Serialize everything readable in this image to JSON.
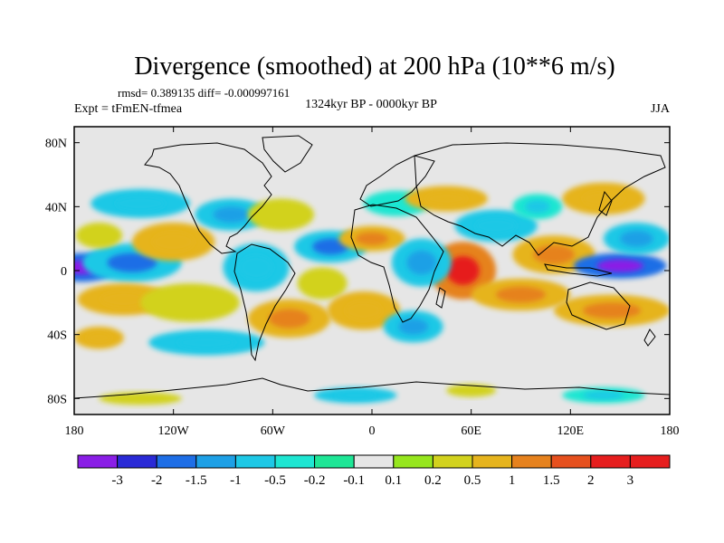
{
  "chart_data": {
    "type": "heatmap",
    "title": "Divergence (smoothed) at 200 hPa (10**6 m/s)",
    "stats_line": "rmsd= 0.389135 diff= -0.000997161",
    "subtitle_center": "1324kyr BP - 0000kyr BP",
    "subtitle_left": "Expt = tFmEN-tfmea",
    "subtitle_right": "JJA",
    "x_ticks": [
      "180",
      "120W",
      "60W",
      "0",
      "60E",
      "120E",
      "180"
    ],
    "x_tick_lons": [
      -180,
      -120,
      -60,
      0,
      60,
      120,
      180
    ],
    "y_ticks": [
      "80N",
      "40N",
      "0",
      "40S",
      "80S"
    ],
    "y_tick_lats": [
      80,
      40,
      0,
      -40,
      -80
    ],
    "xlim": [
      -180,
      180
    ],
    "ylim": [
      -90,
      90
    ],
    "colorbar": {
      "labels": [
        "-3",
        "-2",
        "-1.5",
        "-1",
        "-0.5",
        "-0.2",
        "-0.1",
        "0.1",
        "0.2",
        "0.5",
        "1",
        "1.5",
        "2",
        "3"
      ],
      "colors": [
        "#8a1ee6",
        "#2a2ad6",
        "#1e6ee6",
        "#1ea0e6",
        "#1ec8e6",
        "#1ee6d2",
        "#1ee696",
        "#e6e6e6",
        "#96e61e",
        "#d2d21e",
        "#e6b41e",
        "#e6821e",
        "#e6501e",
        "#e61e1e",
        "#e61e1e"
      ]
    },
    "anomalies": [
      {
        "lon": -175,
        "lat": 2,
        "value": -2.0,
        "rx": 20,
        "ry": 9
      },
      {
        "lon": -145,
        "lat": 5,
        "value": -1.0,
        "rx": 30,
        "ry": 12
      },
      {
        "lon": -120,
        "lat": 18,
        "value": 0.6,
        "rx": 25,
        "ry": 12
      },
      {
        "lon": -165,
        "lat": 22,
        "value": 0.4,
        "rx": 14,
        "ry": 8
      },
      {
        "lon": -150,
        "lat": -18,
        "value": 0.5,
        "rx": 28,
        "ry": 10
      },
      {
        "lon": -110,
        "lat": -20,
        "value": 0.4,
        "rx": 30,
        "ry": 12
      },
      {
        "lon": -140,
        "lat": 42,
        "value": -0.6,
        "rx": 30,
        "ry": 9
      },
      {
        "lon": -165,
        "lat": -42,
        "value": 0.5,
        "rx": 15,
        "ry": 7
      },
      {
        "lon": -100,
        "lat": -45,
        "value": -0.6,
        "rx": 35,
        "ry": 8
      },
      {
        "lon": -85,
        "lat": 35,
        "value": -0.7,
        "rx": 22,
        "ry": 10
      },
      {
        "lon": -55,
        "lat": 35,
        "value": 0.4,
        "rx": 20,
        "ry": 10
      },
      {
        "lon": -70,
        "lat": 2,
        "value": -0.6,
        "rx": 20,
        "ry": 15
      },
      {
        "lon": -25,
        "lat": 15,
        "value": -1.0,
        "rx": 22,
        "ry": 10
      },
      {
        "lon": -30,
        "lat": -8,
        "value": 0.4,
        "rx": 15,
        "ry": 10
      },
      {
        "lon": -50,
        "lat": -30,
        "value": 0.7,
        "rx": 25,
        "ry": 12
      },
      {
        "lon": -5,
        "lat": -25,
        "value": 0.6,
        "rx": 22,
        "ry": 12
      },
      {
        "lon": 0,
        "lat": 20,
        "value": 0.8,
        "rx": 20,
        "ry": 8
      },
      {
        "lon": 15,
        "lat": 42,
        "value": -0.4,
        "rx": 20,
        "ry": 8
      },
      {
        "lon": 25,
        "lat": -35,
        "value": -0.7,
        "rx": 18,
        "ry": 10
      },
      {
        "lon": 45,
        "lat": 45,
        "value": 0.5,
        "rx": 25,
        "ry": 8
      },
      {
        "lon": 55,
        "lat": 0,
        "value": 1.3,
        "rx": 20,
        "ry": 18
      },
      {
        "lon": 30,
        "lat": 5,
        "value": -0.8,
        "rx": 18,
        "ry": 15
      },
      {
        "lon": 75,
        "lat": 28,
        "value": -0.6,
        "rx": 25,
        "ry": 10
      },
      {
        "lon": 90,
        "lat": -15,
        "value": 0.8,
        "rx": 30,
        "ry": 10
      },
      {
        "lon": 110,
        "lat": 10,
        "value": 0.9,
        "rx": 25,
        "ry": 12
      },
      {
        "lon": 150,
        "lat": 3,
        "value": -2.0,
        "rx": 28,
        "ry": 8
      },
      {
        "lon": 140,
        "lat": 45,
        "value": 0.6,
        "rx": 25,
        "ry": 10
      },
      {
        "lon": 160,
        "lat": 20,
        "value": -0.8,
        "rx": 20,
        "ry": 10
      },
      {
        "lon": 145,
        "lat": -25,
        "value": 0.7,
        "rx": 35,
        "ry": 10
      },
      {
        "lon": 100,
        "lat": 40,
        "value": -0.5,
        "rx": 15,
        "ry": 8
      },
      {
        "lon": -140,
        "lat": -80,
        "value": 0.4,
        "rx": 25,
        "ry": 4
      },
      {
        "lon": -10,
        "lat": -78,
        "value": -0.6,
        "rx": 25,
        "ry": 5
      },
      {
        "lon": 140,
        "lat": -78,
        "value": -0.5,
        "rx": 25,
        "ry": 5
      },
      {
        "lon": 60,
        "lat": -75,
        "value": 0.4,
        "rx": 15,
        "ry": 4
      }
    ]
  }
}
